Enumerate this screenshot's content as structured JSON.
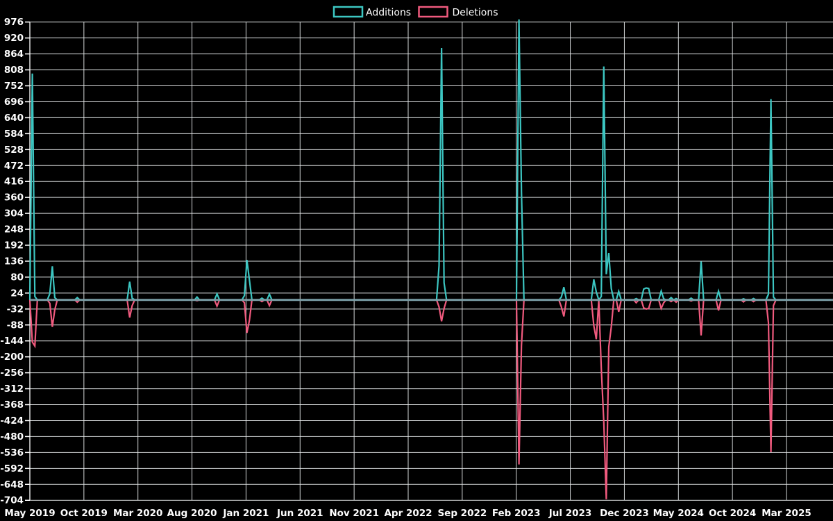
{
  "chart_data": {
    "type": "line",
    "title": "",
    "legend_position": "top-center",
    "grid": true,
    "background_color": "#000000",
    "grid_color": "#e8ebec",
    "text_color": "#ffffff",
    "zero_line_color": "#7e9ea6",
    "xlabel": "",
    "ylabel": "",
    "ylim": [
      -704,
      976
    ],
    "y_tick_step": 56,
    "y_tick_labels": [
      976,
      920,
      864,
      808,
      752,
      696,
      640,
      584,
      528,
      472,
      416,
      360,
      304,
      248,
      192,
      136,
      80,
      24,
      -32,
      -88,
      -144,
      -200,
      -256,
      -312,
      -368,
      -424,
      -480,
      -536,
      -592,
      -648,
      -704
    ],
    "x_tick_labels": [
      "May 2019",
      "Oct 2019",
      "Mar 2020",
      "Aug 2020",
      "Jan 2021",
      "Jun 2021",
      "Nov 2021",
      "Apr 2022",
      "Sep 2022",
      "Feb 2023",
      "Jul 2023",
      "Dec 2023",
      "May 2024",
      "Oct 2024",
      "Mar 2025"
    ],
    "x_unit": "week",
    "weeks_total": 322,
    "baseline_value": 0,
    "series": [
      {
        "name": "Additions",
        "color": "#3cc6c2",
        "points_sparse": [
          [
            1,
            795
          ],
          [
            2,
            12
          ],
          [
            8,
            22
          ],
          [
            9,
            118
          ],
          [
            10,
            8
          ],
          [
            19,
            8
          ],
          [
            40,
            64
          ],
          [
            41,
            6
          ],
          [
            67,
            10
          ],
          [
            75,
            21
          ],
          [
            86,
            15
          ],
          [
            87,
            140
          ],
          [
            88,
            70
          ],
          [
            93,
            6
          ],
          [
            96,
            20
          ],
          [
            164,
            120
          ],
          [
            165,
            885
          ],
          [
            166,
            60
          ],
          [
            196,
            985
          ],
          [
            197,
            380
          ],
          [
            213,
            10
          ],
          [
            214,
            45
          ],
          [
            226,
            72
          ],
          [
            227,
            28
          ],
          [
            229,
            12
          ],
          [
            230,
            820
          ],
          [
            231,
            90
          ],
          [
            232,
            165
          ],
          [
            233,
            40
          ],
          [
            236,
            30
          ],
          [
            243,
            5
          ],
          [
            246,
            38
          ],
          [
            247,
            42
          ],
          [
            248,
            40
          ],
          [
            253,
            31
          ],
          [
            254,
            4
          ],
          [
            257,
            8
          ],
          [
            259,
            5
          ],
          [
            265,
            6
          ],
          [
            269,
            135
          ],
          [
            276,
            31
          ],
          [
            286,
            4
          ],
          [
            290,
            5
          ],
          [
            296,
            20
          ],
          [
            297,
            705
          ],
          [
            298,
            10
          ]
        ]
      },
      {
        "name": "Deletions",
        "color": "#f05a7e",
        "points_sparse": [
          [
            1,
            -148
          ],
          [
            2,
            -162
          ],
          [
            8,
            -12
          ],
          [
            9,
            -95
          ],
          [
            10,
            -35
          ],
          [
            19,
            -8
          ],
          [
            40,
            -62
          ],
          [
            41,
            -20
          ],
          [
            67,
            -3
          ],
          [
            75,
            -22
          ],
          [
            86,
            -10
          ],
          [
            87,
            -116
          ],
          [
            88,
            -72
          ],
          [
            93,
            -6
          ],
          [
            96,
            -20
          ],
          [
            164,
            -25
          ],
          [
            165,
            -75
          ],
          [
            166,
            -30
          ],
          [
            196,
            -578
          ],
          [
            197,
            -160
          ],
          [
            213,
            -25
          ],
          [
            214,
            -58
          ],
          [
            226,
            -90
          ],
          [
            227,
            -138
          ],
          [
            229,
            -240
          ],
          [
            230,
            -428
          ],
          [
            231,
            -700
          ],
          [
            232,
            -165
          ],
          [
            233,
            -95
          ],
          [
            236,
            -42
          ],
          [
            243,
            -10
          ],
          [
            246,
            -28
          ],
          [
            247,
            -32
          ],
          [
            248,
            -30
          ],
          [
            253,
            -30
          ],
          [
            254,
            -10
          ],
          [
            257,
            -6
          ],
          [
            259,
            -8
          ],
          [
            265,
            -4
          ],
          [
            269,
            -125
          ],
          [
            276,
            -37
          ],
          [
            286,
            -7
          ],
          [
            290,
            -6
          ],
          [
            296,
            -80
          ],
          [
            297,
            -535
          ],
          [
            298,
            -20
          ]
        ]
      }
    ],
    "legend": [
      {
        "label": "Additions",
        "color": "#3cc6c2"
      },
      {
        "label": "Deletions",
        "color": "#f05a7e"
      }
    ]
  }
}
